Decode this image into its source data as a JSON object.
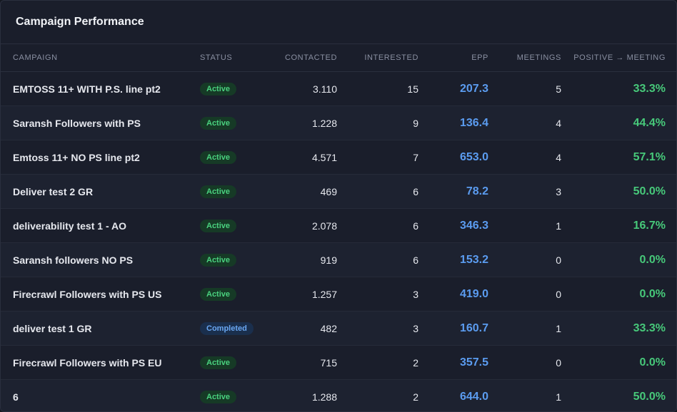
{
  "panel": {
    "title": "Campaign Performance"
  },
  "columns": {
    "campaign": "CAMPAIGN",
    "status": "STATUS",
    "contacted": "CONTACTED",
    "interested": "INTERESTED",
    "epp": "EPP",
    "meetings": "MEETINGS",
    "positive_to_meeting": "POSITIVE → MEETING"
  },
  "colors": {
    "epp": "#5b9cf0",
    "positive": "#47c97a",
    "badge_active": "#4ad27f",
    "badge_completed": "#6aa7f2"
  },
  "rows": [
    {
      "campaign": "EMTOSS 11+ WITH P.S. line pt2",
      "status": "Active",
      "contacted": "3.110",
      "interested": "15",
      "epp": "207.3",
      "meetings": "5",
      "positive_to_meeting": "33.3%"
    },
    {
      "campaign": "Saransh Followers with PS",
      "status": "Active",
      "contacted": "1.228",
      "interested": "9",
      "epp": "136.4",
      "meetings": "4",
      "positive_to_meeting": "44.4%"
    },
    {
      "campaign": "Emtoss 11+ NO PS line pt2",
      "status": "Active",
      "contacted": "4.571",
      "interested": "7",
      "epp": "653.0",
      "meetings": "4",
      "positive_to_meeting": "57.1%"
    },
    {
      "campaign": "Deliver test 2 GR",
      "status": "Active",
      "contacted": "469",
      "interested": "6",
      "epp": "78.2",
      "meetings": "3",
      "positive_to_meeting": "50.0%"
    },
    {
      "campaign": "deliverability test 1 - AO",
      "status": "Active",
      "contacted": "2.078",
      "interested": "6",
      "epp": "346.3",
      "meetings": "1",
      "positive_to_meeting": "16.7%"
    },
    {
      "campaign": "Saransh followers NO PS",
      "status": "Active",
      "contacted": "919",
      "interested": "6",
      "epp": "153.2",
      "meetings": "0",
      "positive_to_meeting": "0.0%"
    },
    {
      "campaign": "Firecrawl Followers with PS US",
      "status": "Active",
      "contacted": "1.257",
      "interested": "3",
      "epp": "419.0",
      "meetings": "0",
      "positive_to_meeting": "0.0%"
    },
    {
      "campaign": "deliver test 1 GR",
      "status": "Completed",
      "contacted": "482",
      "interested": "3",
      "epp": "160.7",
      "meetings": "1",
      "positive_to_meeting": "33.3%"
    },
    {
      "campaign": "Firecrawl Followers with PS EU",
      "status": "Active",
      "contacted": "715",
      "interested": "2",
      "epp": "357.5",
      "meetings": "0",
      "positive_to_meeting": "0.0%"
    },
    {
      "campaign": "6",
      "status": "Active",
      "contacted": "1.288",
      "interested": "2",
      "epp": "644.0",
      "meetings": "1",
      "positive_to_meeting": "50.0%"
    }
  ]
}
